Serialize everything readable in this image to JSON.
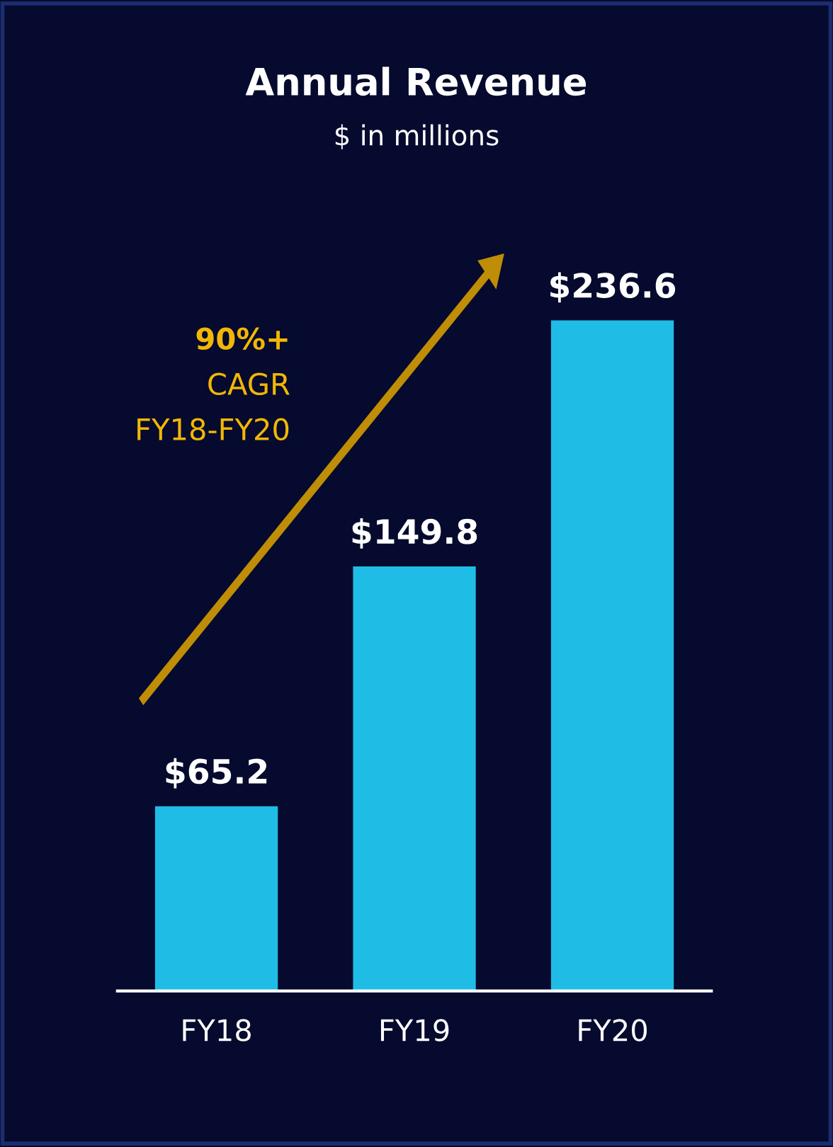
{
  "chart_data": {
    "type": "bar",
    "title": "Annual Revenue",
    "subtitle": "$ in millions",
    "categories": [
      "FY18",
      "FY19",
      "FY20"
    ],
    "values": [
      65.2,
      149.8,
      236.6
    ],
    "value_labels": [
      "$65.2",
      "$149.8",
      "$236.6"
    ],
    "color": "#1fbde6",
    "tick_labels": "x",
    "grid": false,
    "legend": false,
    "annotations": [
      "90%+",
      "CAGR",
      "FY18-FY20"
    ]
  }
}
